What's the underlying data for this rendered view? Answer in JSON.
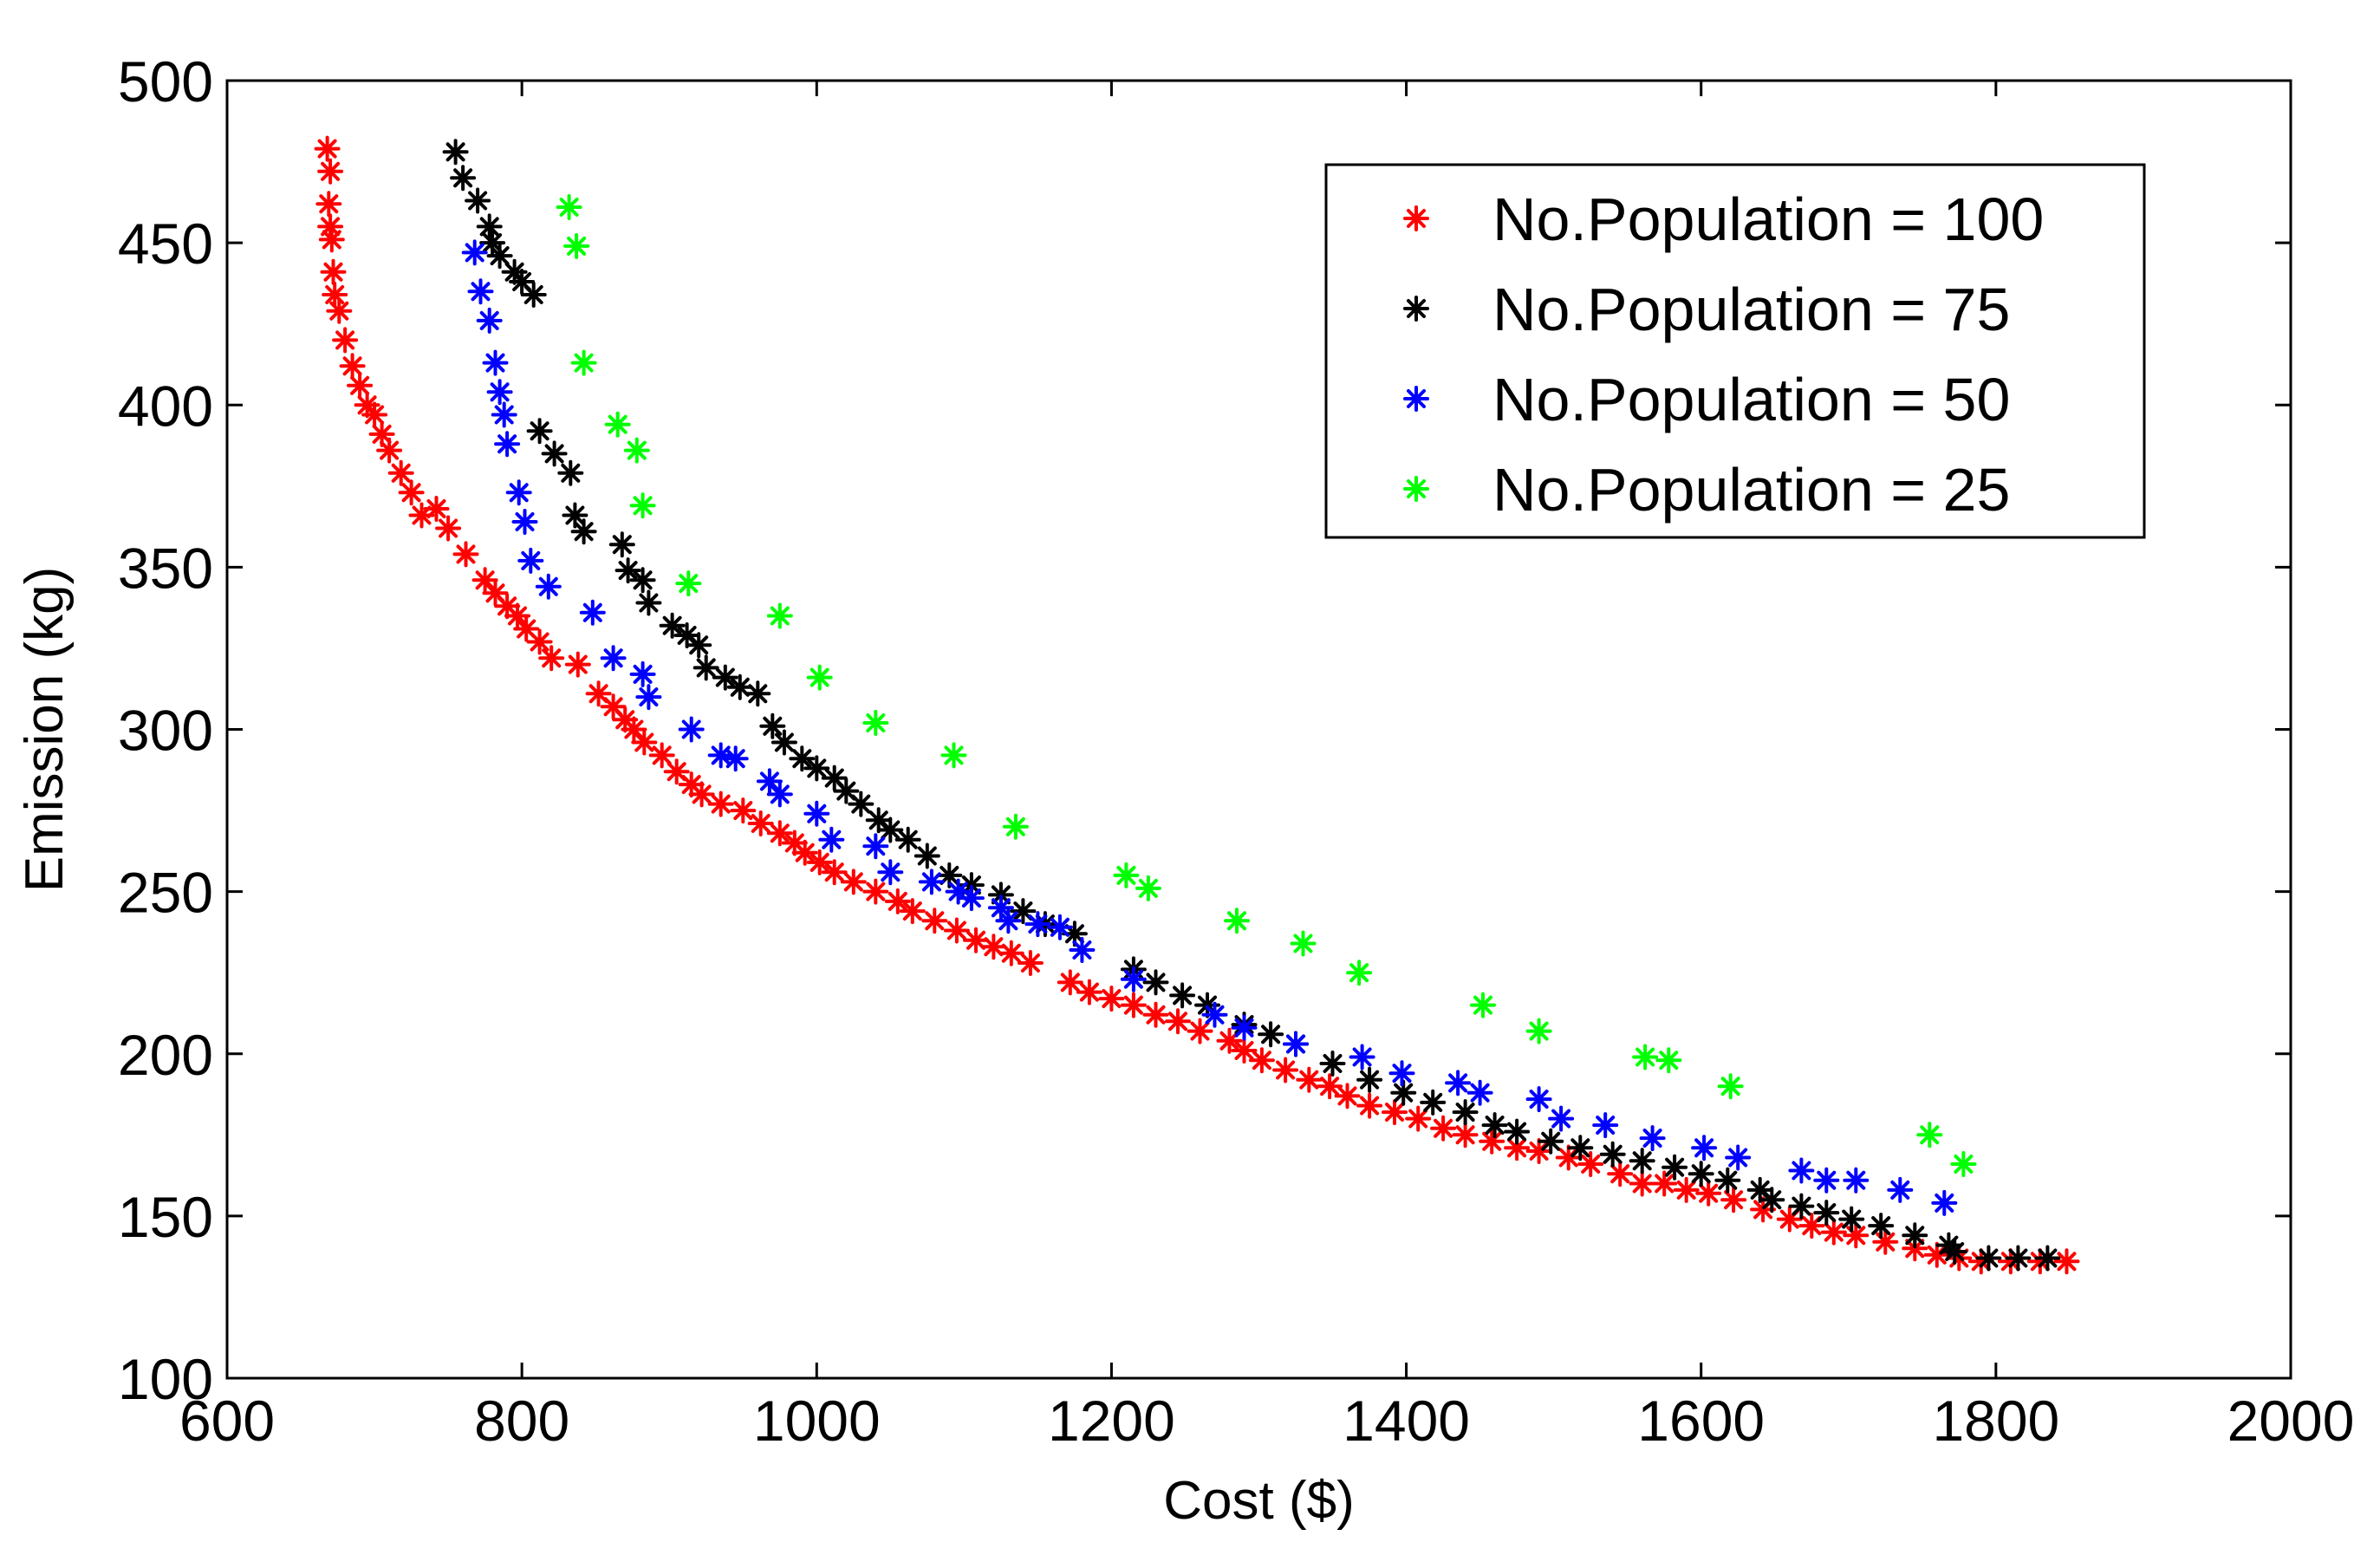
{
  "chart_data": {
    "type": "scatter",
    "title": "",
    "xlabel": "Cost ($)",
    "ylabel": "Emission (kg)",
    "xlim": [
      600,
      2000
    ],
    "ylim": [
      100,
      500
    ],
    "xticks": [
      600,
      800,
      1000,
      1200,
      1400,
      1600,
      1800,
      2000
    ],
    "yticks": [
      100,
      150,
      200,
      250,
      300,
      350,
      400,
      450,
      500
    ],
    "grid": false,
    "legend_position": "top-right",
    "marker": "asterisk",
    "series": [
      {
        "name": "No.Population = 100",
        "color": "#ff0000",
        "points": [
          [
            668,
            479
          ],
          [
            670,
            472
          ],
          [
            669,
            462
          ],
          [
            670,
            455
          ],
          [
            671,
            451
          ],
          [
            672,
            441
          ],
          [
            673,
            434
          ],
          [
            676,
            429
          ],
          [
            680,
            420
          ],
          [
            685,
            412
          ],
          [
            690,
            406
          ],
          [
            695,
            400
          ],
          [
            700,
            397
          ],
          [
            705,
            391
          ],
          [
            710,
            386
          ],
          [
            718,
            379
          ],
          [
            725,
            373
          ],
          [
            732,
            366
          ],
          [
            742,
            368
          ],
          [
            750,
            362
          ],
          [
            762,
            354
          ],
          [
            775,
            346
          ],
          [
            782,
            342
          ],
          [
            790,
            338
          ],
          [
            797,
            335
          ],
          [
            803,
            331
          ],
          [
            812,
            327
          ],
          [
            820,
            322
          ],
          [
            838,
            320
          ],
          [
            852,
            311
          ],
          [
            862,
            307
          ],
          [
            870,
            303
          ],
          [
            876,
            300
          ],
          [
            883,
            296
          ],
          [
            895,
            292
          ],
          [
            905,
            287
          ],
          [
            915,
            283
          ],
          [
            922,
            280
          ],
          [
            935,
            277
          ],
          [
            950,
            275
          ],
          [
            962,
            271
          ],
          [
            975,
            268
          ],
          [
            985,
            265
          ],
          [
            992,
            262
          ],
          [
            1002,
            259
          ],
          [
            1012,
            256
          ],
          [
            1025,
            253
          ],
          [
            1040,
            250
          ],
          [
            1055,
            247
          ],
          [
            1065,
            244
          ],
          [
            1080,
            241
          ],
          [
            1095,
            238
          ],
          [
            1108,
            235
          ],
          [
            1120,
            233
          ],
          [
            1132,
            231
          ],
          [
            1145,
            228
          ],
          [
            1172,
            222
          ],
          [
            1185,
            219
          ],
          [
            1200,
            217
          ],
          [
            1215,
            215
          ],
          [
            1230,
            212
          ],
          [
            1245,
            210
          ],
          [
            1260,
            207
          ],
          [
            1280,
            204
          ],
          [
            1290,
            201
          ],
          [
            1302,
            198
          ],
          [
            1318,
            195
          ],
          [
            1334,
            192
          ],
          [
            1348,
            190
          ],
          [
            1360,
            187
          ],
          [
            1375,
            184
          ],
          [
            1392,
            182
          ],
          [
            1408,
            180
          ],
          [
            1425,
            177
          ],
          [
            1440,
            175
          ],
          [
            1458,
            173
          ],
          [
            1475,
            171
          ],
          [
            1490,
            170
          ],
          [
            1510,
            168
          ],
          [
            1525,
            166
          ],
          [
            1545,
            163
          ],
          [
            1560,
            160
          ],
          [
            1575,
            160
          ],
          [
            1590,
            158
          ],
          [
            1605,
            157
          ],
          [
            1622,
            155
          ],
          [
            1642,
            152
          ],
          [
            1660,
            149
          ],
          [
            1675,
            147
          ],
          [
            1690,
            145
          ],
          [
            1705,
            144
          ],
          [
            1725,
            142
          ],
          [
            1745,
            140
          ],
          [
            1760,
            138
          ],
          [
            1775,
            137
          ],
          [
            1790,
            136
          ],
          [
            1810,
            136
          ],
          [
            1830,
            136
          ],
          [
            1848,
            136
          ]
        ]
      },
      {
        "name": "No.Population = 75",
        "color": "#000000",
        "points": [
          [
            755,
            478
          ],
          [
            760,
            470
          ],
          [
            770,
            463
          ],
          [
            778,
            455
          ],
          [
            780,
            450
          ],
          [
            785,
            446
          ],
          [
            795,
            441
          ],
          [
            800,
            438
          ],
          [
            808,
            434
          ],
          [
            812,
            392
          ],
          [
            822,
            385
          ],
          [
            833,
            379
          ],
          [
            836,
            366
          ],
          [
            842,
            361
          ],
          [
            868,
            357
          ],
          [
            872,
            349
          ],
          [
            882,
            346
          ],
          [
            886,
            339
          ],
          [
            902,
            332
          ],
          [
            912,
            329
          ],
          [
            920,
            326
          ],
          [
            925,
            319
          ],
          [
            938,
            316
          ],
          [
            948,
            313
          ],
          [
            960,
            311
          ],
          [
            970,
            301
          ],
          [
            978,
            296
          ],
          [
            990,
            291
          ],
          [
            1000,
            288
          ],
          [
            1012,
            285
          ],
          [
            1020,
            281
          ],
          [
            1030,
            277
          ],
          [
            1042,
            272
          ],
          [
            1050,
            269
          ],
          [
            1062,
            266
          ],
          [
            1075,
            261
          ],
          [
            1090,
            255
          ],
          [
            1105,
            252
          ],
          [
            1125,
            249
          ],
          [
            1140,
            244
          ],
          [
            1155,
            240
          ],
          [
            1175,
            237
          ],
          [
            1215,
            226
          ],
          [
            1230,
            222
          ],
          [
            1248,
            218
          ],
          [
            1265,
            215
          ],
          [
            1290,
            209
          ],
          [
            1308,
            206
          ],
          [
            1325,
            203
          ],
          [
            1350,
            197
          ],
          [
            1375,
            192
          ],
          [
            1398,
            188
          ],
          [
            1418,
            185
          ],
          [
            1440,
            182
          ],
          [
            1460,
            178
          ],
          [
            1475,
            176
          ],
          [
            1498,
            173
          ],
          [
            1518,
            171
          ],
          [
            1540,
            169
          ],
          [
            1560,
            167
          ],
          [
            1582,
            165
          ],
          [
            1600,
            163
          ],
          [
            1618,
            161
          ],
          [
            1640,
            158
          ],
          [
            1648,
            155
          ],
          [
            1668,
            153
          ],
          [
            1685,
            151
          ],
          [
            1702,
            149
          ],
          [
            1722,
            147
          ],
          [
            1745,
            144
          ],
          [
            1768,
            141
          ],
          [
            1772,
            139
          ],
          [
            1795,
            137
          ],
          [
            1815,
            137
          ],
          [
            1835,
            137
          ]
        ]
      },
      {
        "name": "No.Population = 50",
        "color": "#0000ff",
        "points": [
          [
            768,
            447
          ],
          [
            772,
            435
          ],
          [
            778,
            426
          ],
          [
            782,
            413
          ],
          [
            785,
            404
          ],
          [
            788,
            397
          ],
          [
            790,
            388
          ],
          [
            798,
            373
          ],
          [
            802,
            364
          ],
          [
            806,
            352
          ],
          [
            818,
            344
          ],
          [
            848,
            336
          ],
          [
            862,
            322
          ],
          [
            882,
            317
          ],
          [
            886,
            310
          ],
          [
            915,
            300
          ],
          [
            935,
            292
          ],
          [
            945,
            291
          ],
          [
            968,
            284
          ],
          [
            975,
            280
          ],
          [
            1000,
            274
          ],
          [
            1010,
            266
          ],
          [
            1040,
            264
          ],
          [
            1050,
            256
          ],
          [
            1078,
            253
          ],
          [
            1096,
            250
          ],
          [
            1105,
            248
          ],
          [
            1125,
            245
          ],
          [
            1130,
            241
          ],
          [
            1150,
            240
          ],
          [
            1165,
            239
          ],
          [
            1180,
            232
          ],
          [
            1215,
            223
          ],
          [
            1270,
            212
          ],
          [
            1290,
            208
          ],
          [
            1325,
            203
          ],
          [
            1370,
            199
          ],
          [
            1397,
            194
          ],
          [
            1435,
            191
          ],
          [
            1450,
            188
          ],
          [
            1490,
            186
          ],
          [
            1505,
            180
          ],
          [
            1535,
            178
          ],
          [
            1567,
            174
          ],
          [
            1602,
            171
          ],
          [
            1625,
            168
          ],
          [
            1668,
            164
          ],
          [
            1685,
            161
          ],
          [
            1705,
            161
          ],
          [
            1735,
            158
          ],
          [
            1765,
            154
          ]
        ]
      },
      {
        "name": "No.Population = 25",
        "color": "#00ff00",
        "points": [
          [
            832,
            461
          ],
          [
            837,
            449
          ],
          [
            842,
            413
          ],
          [
            865,
            394
          ],
          [
            878,
            386
          ],
          [
            882,
            369
          ],
          [
            913,
            345
          ],
          [
            975,
            335
          ],
          [
            1002,
            316
          ],
          [
            1040,
            302
          ],
          [
            1093,
            292
          ],
          [
            1135,
            270
          ],
          [
            1210,
            255
          ],
          [
            1225,
            251
          ],
          [
            1285,
            241
          ],
          [
            1330,
            234
          ],
          [
            1368,
            225
          ],
          [
            1452,
            215
          ],
          [
            1490,
            207
          ],
          [
            1562,
            199
          ],
          [
            1578,
            198
          ],
          [
            1620,
            190
          ],
          [
            1755,
            175
          ],
          [
            1778,
            166
          ]
        ]
      }
    ]
  }
}
